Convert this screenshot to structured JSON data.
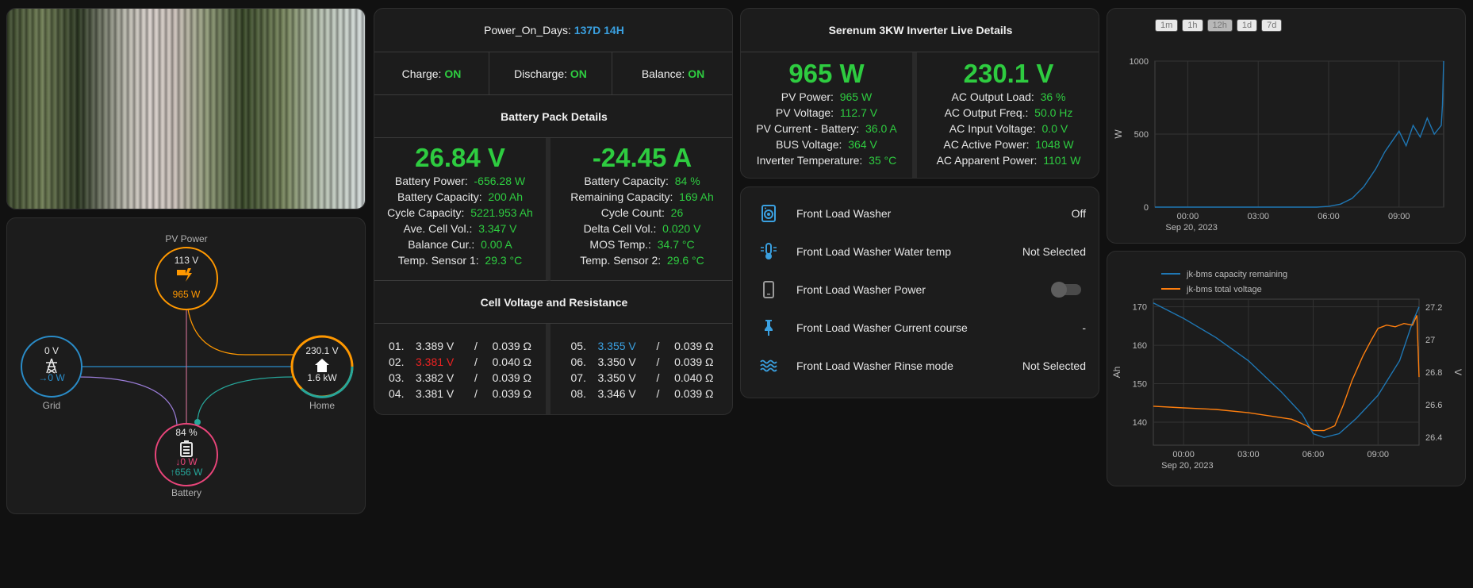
{
  "camera": {
    "alt": "camera"
  },
  "energy": {
    "pv": {
      "label": "PV Power",
      "voltage": "113 V",
      "power": "965 W"
    },
    "grid": {
      "label": "Grid",
      "voltage": "0 V",
      "power": "→0 W"
    },
    "home": {
      "label": "Home",
      "voltage": "230.1 V",
      "power": "1.6 kW"
    },
    "battery": {
      "label": "Battery",
      "soc": "84 %",
      "in": "↓0 W",
      "out": "↑656 W"
    }
  },
  "bms": {
    "power_on_label": "Power_On_Days:",
    "power_on_value": "137D 14H",
    "switches": [
      {
        "label": "Charge:",
        "value": "ON"
      },
      {
        "label": "Discharge:",
        "value": "ON"
      },
      {
        "label": "Balance:",
        "value": "ON"
      }
    ],
    "pack_title": "Battery Pack Details",
    "voltage": "26.84 V",
    "current": "-24.45 A",
    "left_rows": [
      {
        "label": "Battery Power:",
        "value": "-656.28 W"
      },
      {
        "label": "Battery Capacity:",
        "value": "200 Ah"
      },
      {
        "label": "Cycle Capacity:",
        "value": "5221.953 Ah"
      },
      {
        "label": "Ave. Cell Vol.:",
        "value": "3.347 V"
      },
      {
        "label": "Balance Cur.:",
        "value": "0.00 A"
      },
      {
        "label": "Temp. Sensor 1:",
        "value": "29.3 °C"
      }
    ],
    "right_rows": [
      {
        "label": "Battery Capacity:",
        "value": "84 %"
      },
      {
        "label": "Remaining Capacity:",
        "value": "169 Ah"
      },
      {
        "label": "Cycle Count:",
        "value": "26"
      },
      {
        "label": "Delta Cell Vol.:",
        "value": "0.020 V"
      },
      {
        "label": "MOS Temp.:",
        "value": "34.7 °C"
      },
      {
        "label": "Temp. Sensor 2:",
        "value": "29.6 °C"
      }
    ],
    "cells_title": "Cell Voltage and Resistance",
    "cells_left": [
      {
        "n": "01.",
        "v": "3.389 V",
        "r": "0.039 Ω"
      },
      {
        "n": "02.",
        "v": "3.381 V",
        "r": "0.040 Ω"
      },
      {
        "n": "03.",
        "v": "3.382 V",
        "r": "0.039 Ω"
      },
      {
        "n": "04.",
        "v": "3.381 V",
        "r": "0.039 Ω"
      }
    ],
    "cells_right": [
      {
        "n": "05.",
        "v": "3.355 V",
        "r": "0.039 Ω"
      },
      {
        "n": "06.",
        "v": "3.350 V",
        "r": "0.039 Ω"
      },
      {
        "n": "07.",
        "v": "3.350 V",
        "r": "0.040 Ω"
      },
      {
        "n": "08.",
        "v": "3.346 V",
        "r": "0.039 Ω"
      }
    ],
    "sep": "/",
    "colors": {
      "min_cell": "#ee2222",
      "max_cell": "#3aa0e0",
      "value": "#2ecc40"
    }
  },
  "inverter": {
    "title": "Serenum 3KW Inverter Live Details",
    "pv_big": "965 W",
    "ac_big": "230.1 V",
    "left_rows": [
      {
        "label": "PV Power:",
        "value": "965 W"
      },
      {
        "label": "PV Voltage:",
        "value": "112.7 V"
      },
      {
        "label": "PV Current - Battery:",
        "value": "36.0 A"
      },
      {
        "label": "BUS Voltage:",
        "value": "364 V"
      },
      {
        "label": "Inverter Temperature:",
        "value": "35 °C"
      }
    ],
    "right_rows": [
      {
        "label": "AC Output Load:",
        "value": "36 %"
      },
      {
        "label": "AC Output Freq.:",
        "value": "50.0 Hz"
      },
      {
        "label": "AC Input Voltage:",
        "value": "0.0 V"
      },
      {
        "label": "AC Active Power:",
        "value": "1048 W"
      },
      {
        "label": "AC Apparent Power:",
        "value": "1101 W"
      }
    ]
  },
  "washer": {
    "rows": [
      {
        "icon": "washing-machine-icon",
        "name": "Front Load Washer",
        "state": "Off"
      },
      {
        "icon": "thermometer-water-icon",
        "name": "Front Load Washer Water temp",
        "state": "Not Selected"
      },
      {
        "icon": "phone-icon",
        "name": "Front Load Washer Power",
        "state": ""
      },
      {
        "icon": "pin-icon",
        "name": "Front Load Washer Current course",
        "state": "-"
      },
      {
        "icon": "water-waves-icon",
        "name": "Front Load Washer Rinse mode",
        "state": "Not Selected"
      }
    ]
  },
  "ranges": [
    "1m",
    "1h",
    "12h",
    "1d",
    "7d"
  ],
  "chart_data": [
    {
      "type": "line",
      "title": "",
      "ylabel": "W",
      "ylim": [
        0,
        1000
      ],
      "yticks": [
        "0",
        "500",
        "1000"
      ],
      "xticks": [
        "00:00",
        "03:00",
        "06:00",
        "09:00"
      ],
      "xdate": "Sep 20, 2023",
      "xrange_hours": [
        -1.4,
        10.9
      ],
      "series": [
        {
          "color": "#1f77b4",
          "x": [
            -1.4,
            2.0,
            5.5,
            6.0,
            6.5,
            7.0,
            7.5,
            8.0,
            8.4,
            8.7,
            9.0,
            9.3,
            9.6,
            9.9,
            10.2,
            10.5,
            10.8,
            10.85,
            10.9
          ],
          "y": [
            0,
            0,
            0,
            5,
            20,
            60,
            140,
            260,
            380,
            450,
            520,
            420,
            560,
            480,
            610,
            500,
            560,
            700,
            1000
          ]
        }
      ]
    },
    {
      "type": "line",
      "title": "",
      "ylabel": "Ah",
      "y2label": "V",
      "ylim": [
        134,
        172
      ],
      "y2lim": [
        26.35,
        27.25
      ],
      "yticks": [
        "140",
        "150",
        "160",
        "170"
      ],
      "y2ticks": [
        "26.4",
        "26.6",
        "26.8",
        "27",
        "27.2"
      ],
      "xticks": [
        "00:00",
        "03:00",
        "06:00",
        "09:00"
      ],
      "xdate": "Sep 20, 2023",
      "xrange_hours": [
        -1.4,
        10.9
      ],
      "series": [
        {
          "name": "jk-bms capacity remaining",
          "color": "#1f77b4",
          "axis": "left",
          "x": [
            -1.4,
            0.0,
            1.5,
            3.0,
            4.5,
            5.5,
            6.0,
            6.5,
            7.2,
            8.0,
            9.0,
            10.0,
            10.6,
            10.9
          ],
          "y": [
            171,
            167,
            162,
            156,
            148,
            142,
            137,
            136,
            137,
            141,
            147,
            156,
            166,
            170
          ]
        },
        {
          "name": "jk-bms total voltage",
          "color": "#ff7f0e",
          "axis": "right",
          "x": [
            -1.4,
            0.0,
            1.5,
            3.0,
            4.0,
            5.0,
            5.7,
            6.0,
            6.5,
            7.0,
            7.4,
            7.8,
            8.3,
            8.7,
            9.0,
            9.4,
            9.8,
            10.2,
            10.6,
            10.8,
            10.9
          ],
          "y": [
            26.59,
            26.58,
            26.57,
            26.55,
            26.53,
            26.51,
            26.47,
            26.44,
            26.44,
            26.47,
            26.6,
            26.75,
            26.9,
            27.0,
            27.07,
            27.09,
            27.08,
            27.1,
            27.09,
            27.15,
            26.77
          ]
        }
      ]
    }
  ]
}
